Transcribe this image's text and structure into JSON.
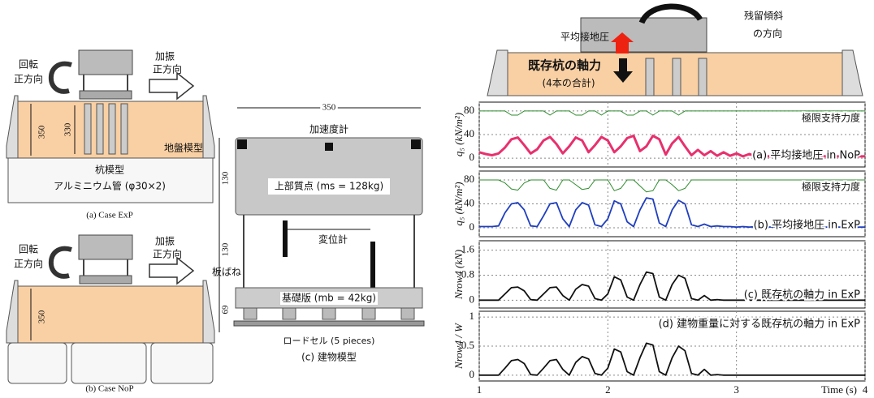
{
  "diagrams": {
    "case_exp": {
      "rotation": [
        "回転",
        "正方向"
      ],
      "excitation": [
        "加振",
        "正方向"
      ],
      "depth": "350",
      "pile_length": "330",
      "ground": "地盤模型",
      "pile": [
        "杭模型",
        "アルミニウム管 (φ30×2)"
      ],
      "caption": "(a) Case ExP"
    },
    "case_nop": {
      "rotation": [
        "回転",
        "正方向"
      ],
      "excitation": [
        "加振",
        "正方向"
      ],
      "depth": "350",
      "caption": "(b) Case NoP"
    },
    "building": {
      "width": "350",
      "accelerometer": "加速度計",
      "upper_height": "130",
      "upper_mass": "上部質点 (ms = 128kg)",
      "mid_height": "130",
      "displacement": "変位計",
      "spring": "板ばね",
      "base_height": "69",
      "base_mass": "基礎版 (mb = 42kg)",
      "load_cell": "ロードセル (5 pieces)",
      "caption": "(c) 建物模型"
    },
    "schematic": {
      "pressure": "平均接地圧",
      "tilt": [
        "残留傾斜",
        "の方向"
      ],
      "pile_force": [
        "既存杭の軸力",
        "(4本の合計)"
      ]
    }
  },
  "chart_data": [
    {
      "type": "line",
      "ylabel": "q₅ (kN/m²)",
      "annotations": [
        "極限支持力度",
        "(a) 平均接地圧 in NoP"
      ],
      "xlim": [
        1,
        4
      ],
      "xticks": [
        1,
        2,
        3,
        4
      ],
      "ylim": [
        -15,
        95
      ],
      "yticks": [
        0,
        40,
        80
      ],
      "grid": true,
      "x": [
        1,
        1.05,
        1.1,
        1.15,
        1.2,
        1.25,
        1.3,
        1.35,
        1.4,
        1.45,
        1.5,
        1.55,
        1.6,
        1.65,
        1.7,
        1.75,
        1.8,
        1.85,
        1.9,
        1.95,
        2,
        2.05,
        2.1,
        2.15,
        2.2,
        2.25,
        2.3,
        2.35,
        2.4,
        2.45,
        2.5,
        2.55,
        2.6,
        2.65,
        2.7,
        2.75,
        2.8,
        2.85,
        2.9,
        2.95,
        3,
        3.05,
        3.1,
        3.15,
        3.2,
        3.25,
        3.3,
        3.35,
        3.4,
        3.45,
        3.5,
        3.55,
        3.6,
        3.65,
        3.7,
        3.75,
        3.8,
        3.85,
        3.9,
        3.95,
        4
      ],
      "series": [
        {
          "color": "#2e8b2e",
          "values": [
            80,
            80,
            80,
            80,
            80,
            73,
            73,
            80,
            80,
            80,
            80,
            73,
            80,
            80,
            80,
            73,
            73,
            80,
            80,
            73,
            80,
            80,
            80,
            73,
            73,
            80,
            80,
            73,
            80,
            80,
            80,
            73,
            80,
            80,
            80,
            80,
            80,
            80,
            80,
            80,
            80,
            80,
            80,
            80,
            80,
            80,
            80,
            80,
            80,
            80,
            80,
            80,
            80,
            80,
            80,
            80,
            80,
            80,
            80,
            80,
            80
          ]
        },
        {
          "color": "#e8306e",
          "values": [
            10,
            7,
            5,
            8,
            18,
            32,
            35,
            22,
            8,
            15,
            30,
            36,
            24,
            8,
            20,
            35,
            30,
            10,
            22,
            36,
            30,
            10,
            20,
            34,
            38,
            12,
            20,
            38,
            32,
            6,
            25,
            36,
            20,
            5,
            14,
            5,
            12,
            4,
            10,
            4,
            8,
            3,
            7,
            3,
            5,
            3,
            4,
            3,
            4,
            3,
            3,
            3,
            3,
            3,
            3,
            3,
            3,
            3,
            3,
            3,
            3
          ]
        }
      ]
    },
    {
      "type": "line",
      "ylabel": "q₅ (kN/m²)",
      "annotations": [
        "極限支持力度",
        "(b) 平均接地圧 in ExP"
      ],
      "xlim": [
        1,
        4
      ],
      "xticks": [
        1,
        2,
        3,
        4
      ],
      "ylim": [
        -15,
        95
      ],
      "yticks": [
        0,
        40,
        80
      ],
      "grid": true,
      "x": [
        1,
        1.05,
        1.1,
        1.15,
        1.2,
        1.25,
        1.3,
        1.35,
        1.4,
        1.45,
        1.5,
        1.55,
        1.6,
        1.65,
        1.7,
        1.75,
        1.8,
        1.85,
        1.9,
        1.95,
        2,
        2.05,
        2.1,
        2.15,
        2.2,
        2.25,
        2.3,
        2.35,
        2.4,
        2.45,
        2.5,
        2.55,
        2.6,
        2.65,
        2.7,
        2.75,
        2.8,
        2.85,
        2.9,
        2.95,
        3,
        3.05,
        3.1,
        3.15,
        3.2,
        3.25,
        3.3,
        3.35,
        3.4,
        3.45,
        3.5,
        3.55,
        3.6,
        3.65,
        3.7,
        3.75,
        3.8,
        3.85,
        3.9,
        3.95,
        4
      ],
      "series": [
        {
          "color": "#2e8b2e",
          "values": [
            80,
            80,
            80,
            80,
            75,
            65,
            63,
            75,
            80,
            80,
            80,
            66,
            63,
            80,
            80,
            72,
            64,
            66,
            80,
            80,
            80,
            62,
            66,
            80,
            80,
            70,
            60,
            62,
            80,
            80,
            72,
            62,
            66,
            80,
            80,
            80,
            80,
            80,
            80,
            80,
            80,
            80,
            80,
            80,
            80,
            80,
            80,
            80,
            80,
            80,
            80,
            80,
            80,
            80,
            80,
            80,
            80,
            80,
            80,
            80,
            80
          ]
        },
        {
          "color": "#1f3fbf",
          "values": [
            2,
            2,
            2,
            3,
            25,
            40,
            42,
            30,
            3,
            2,
            20,
            40,
            42,
            15,
            2,
            30,
            42,
            38,
            5,
            2,
            15,
            45,
            40,
            10,
            2,
            30,
            50,
            48,
            8,
            2,
            30,
            46,
            40,
            5,
            2,
            6,
            2,
            3,
            2,
            2,
            1,
            2,
            1,
            2,
            1,
            1,
            2,
            1,
            1,
            1,
            1,
            1,
            1,
            1,
            1,
            1,
            1,
            1,
            1,
            1,
            1
          ]
        }
      ]
    },
    {
      "type": "line",
      "ylabel": "Nrow4 (kN)",
      "annotations": [
        "(c) 既存杭の軸力 in ExP"
      ],
      "xlim": [
        1,
        4
      ],
      "xticks": [
        1,
        2,
        3,
        4
      ],
      "ylim": [
        -0.25,
        1.9
      ],
      "yticks": [
        0,
        0.8,
        1.6
      ],
      "grid": true,
      "x": [
        1,
        1.05,
        1.1,
        1.15,
        1.2,
        1.25,
        1.3,
        1.35,
        1.4,
        1.45,
        1.5,
        1.55,
        1.6,
        1.65,
        1.7,
        1.75,
        1.8,
        1.85,
        1.9,
        1.95,
        2,
        2.05,
        2.1,
        2.15,
        2.2,
        2.25,
        2.3,
        2.35,
        2.4,
        2.45,
        2.5,
        2.55,
        2.6,
        2.65,
        2.7,
        2.75,
        2.8,
        2.85,
        2.9,
        2.95,
        3,
        3.05,
        3.1,
        3.15,
        3.2,
        3.25,
        3.3,
        3.35,
        3.4,
        3.45,
        3.5,
        3.55,
        3.6,
        3.65,
        3.7,
        3.75,
        3.8,
        3.85,
        3.9,
        3.95,
        4
      ],
      "series": [
        {
          "color": "#111111",
          "values": [
            0,
            0,
            0,
            0,
            0.2,
            0.4,
            0.42,
            0.3,
            0.02,
            0,
            0.2,
            0.4,
            0.42,
            0.15,
            0,
            0.35,
            0.5,
            0.45,
            0.05,
            0,
            0.2,
            0.75,
            0.65,
            0.1,
            0,
            0.5,
            0.9,
            0.85,
            0.1,
            0,
            0.5,
            0.8,
            0.7,
            0.05,
            0,
            0.15,
            0,
            0.02,
            0,
            0,
            0,
            0,
            0,
            0,
            0,
            0,
            0,
            0,
            0,
            0,
            0,
            0,
            0,
            0,
            0,
            0,
            0,
            0,
            0,
            0,
            0
          ]
        }
      ]
    },
    {
      "type": "line",
      "ylabel": "Nrow4 / W",
      "annotations": [
        "(d) 建物重量に対する既存杭の軸力 in ExP"
      ],
      "xlabel": "Time (s)",
      "xtick_labels": true,
      "xlim": [
        1,
        4
      ],
      "xticks": [
        1,
        2,
        3,
        4
      ],
      "ylim": [
        -0.1,
        1.1
      ],
      "yticks": [
        0,
        0.5,
        1
      ],
      "grid": true,
      "x": [
        1,
        1.05,
        1.1,
        1.15,
        1.2,
        1.25,
        1.3,
        1.35,
        1.4,
        1.45,
        1.5,
        1.55,
        1.6,
        1.65,
        1.7,
        1.75,
        1.8,
        1.85,
        1.9,
        1.95,
        2,
        2.05,
        2.1,
        2.15,
        2.2,
        2.25,
        2.3,
        2.35,
        2.4,
        2.45,
        2.5,
        2.55,
        2.6,
        2.65,
        2.7,
        2.75,
        2.8,
        2.85,
        2.9,
        2.95,
        3,
        3.05,
        3.1,
        3.15,
        3.2,
        3.25,
        3.3,
        3.35,
        3.4,
        3.45,
        3.5,
        3.55,
        3.6,
        3.65,
        3.7,
        3.75,
        3.8,
        3.85,
        3.9,
        3.95,
        4
      ],
      "series": [
        {
          "color": "#111111",
          "values": [
            0,
            0,
            0,
            0,
            0.12,
            0.25,
            0.27,
            0.2,
            0.01,
            0,
            0.12,
            0.25,
            0.27,
            0.1,
            0,
            0.22,
            0.32,
            0.28,
            0.03,
            0,
            0.12,
            0.45,
            0.4,
            0.06,
            0,
            0.3,
            0.55,
            0.52,
            0.06,
            0,
            0.3,
            0.5,
            0.42,
            0.03,
            0,
            0.1,
            0,
            0.01,
            0,
            0,
            0,
            0,
            0,
            0,
            0,
            0,
            0,
            0,
            0,
            0,
            0,
            0,
            0,
            0,
            0,
            0,
            0,
            0,
            0,
            0,
            0
          ]
        }
      ]
    }
  ]
}
